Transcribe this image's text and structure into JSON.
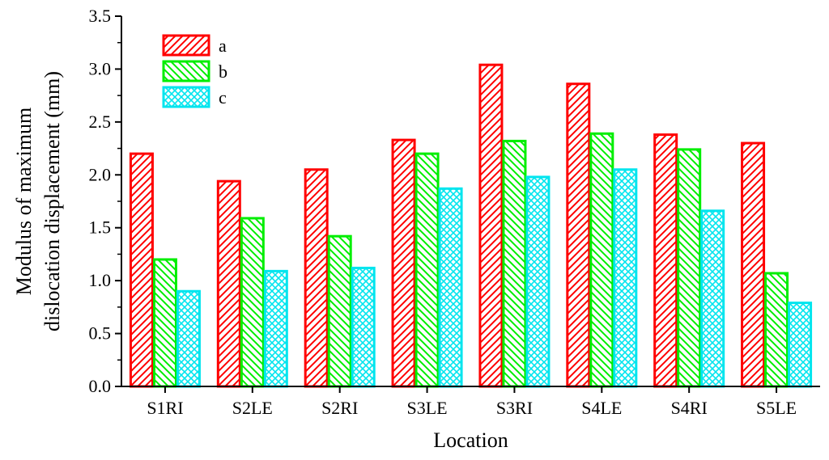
{
  "chart_data": {
    "type": "bar",
    "xlabel": "Location",
    "ylabel_lines": [
      "Modulus of maximum",
      "dislocation displacement (mm)"
    ],
    "categories": [
      "S1RI",
      "S2LE",
      "S2RI",
      "S3LE",
      "S3RI",
      "S4LE",
      "S4RI",
      "S5LE"
    ],
    "series": [
      {
        "name": "a",
        "values": [
          2.2,
          1.94,
          2.05,
          2.33,
          3.04,
          2.86,
          2.38,
          2.3
        ],
        "color": "#ff0000",
        "pattern": "diagonal-up"
      },
      {
        "name": "b",
        "values": [
          1.2,
          1.59,
          1.42,
          2.2,
          2.32,
          2.39,
          2.24,
          1.07
        ],
        "color": "#00ee00",
        "pattern": "diagonal-down"
      },
      {
        "name": "c",
        "values": [
          0.9,
          1.09,
          1.12,
          1.87,
          1.98,
          2.05,
          1.66,
          0.79
        ],
        "color": "#00e5ee",
        "pattern": "crosshatch"
      }
    ],
    "ylim": [
      0,
      3.5
    ],
    "yticks": [
      "0.0",
      "0.5",
      "1.0",
      "1.5",
      "2.0",
      "2.5",
      "3.0",
      "3.5"
    ],
    "grid": false,
    "legend_position": "top-left"
  }
}
